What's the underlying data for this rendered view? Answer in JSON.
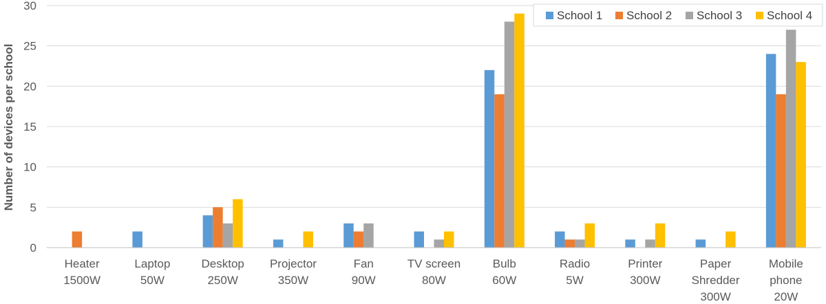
{
  "chart_data": {
    "type": "bar",
    "title": "",
    "xlabel": "",
    "ylabel": "Number of devices per school",
    "ylim": [
      0,
      30
    ],
    "yticks": [
      0,
      5,
      10,
      15,
      20,
      25,
      30
    ],
    "grid": true,
    "legend_position": "top-right",
    "categories": [
      [
        "Heater",
        "1500W"
      ],
      [
        "Laptop",
        "50W"
      ],
      [
        "Desktop",
        "250W"
      ],
      [
        "Projector",
        "350W"
      ],
      [
        "Fan",
        "90W"
      ],
      [
        "TV screen",
        "80W"
      ],
      [
        "Bulb",
        "60W"
      ],
      [
        "Radio",
        "5W"
      ],
      [
        "Printer",
        "300W"
      ],
      [
        "Paper",
        "Shredder",
        "300W"
      ],
      [
        "Mobile",
        "phone",
        "20W"
      ]
    ],
    "series": [
      {
        "name": "School 1",
        "color": "#5B9BD5",
        "values": [
          0,
          2,
          4,
          1,
          3,
          2,
          22,
          2,
          1,
          1,
          24
        ]
      },
      {
        "name": "School 2",
        "color": "#ED7D31",
        "values": [
          2,
          0,
          5,
          0,
          2,
          0,
          19,
          1,
          0,
          0,
          19
        ]
      },
      {
        "name": "School 3",
        "color": "#A5A5A5",
        "values": [
          0,
          0,
          3,
          0,
          3,
          1,
          28,
          1,
          1,
          0,
          27
        ]
      },
      {
        "name": "School 4",
        "color": "#FFC000",
        "values": [
          0,
          0,
          6,
          2,
          0,
          2,
          29,
          3,
          3,
          2,
          23
        ]
      }
    ]
  }
}
